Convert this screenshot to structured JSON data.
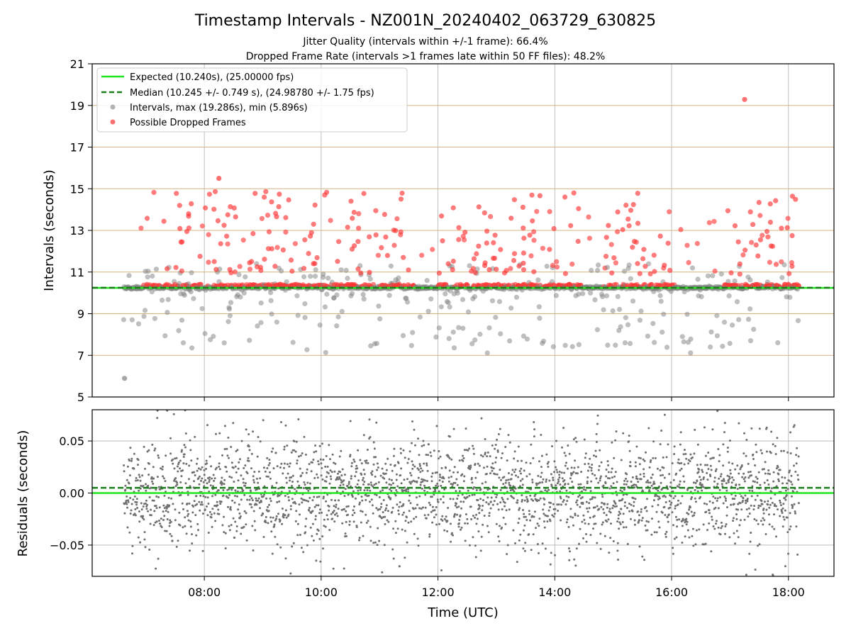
{
  "chart_data": [
    {
      "type": "scatter",
      "title": "Timestamp Intervals - NZ001N_20240402_063729_630825",
      "subtitle_lines": [
        "Jitter Quality (intervals within +/-1 frame): 66.4%",
        "Dropped Frame Rate (intervals >1 frames late within 50 FF files): 48.2%"
      ],
      "ylabel": "Intervals (seconds)",
      "ylim": [
        5,
        21
      ],
      "yticks": [
        "5",
        "7",
        "9",
        "11",
        "13",
        "15",
        "17",
        "19",
        "21"
      ],
      "xlim_hours": [
        6.08,
        18.78
      ],
      "grid": "vertical at x ticks; horizontal tan lines at odd y",
      "legend_position": "upper-left",
      "legend": [
        {
          "label": "Expected (10.240s), (25.00000 fps)",
          "style": "solid-line",
          "color": "#1ee61e"
        },
        {
          "label": "Median (10.245 +/- 0.749 s), (24.98780 +/- 1.75 fps)",
          "style": "dashed-line",
          "color": "#1a7f1a"
        },
        {
          "label": "Intervals, max (19.286s), min (5.896s)",
          "style": "marker",
          "color": "#808080"
        },
        {
          "label": "Possible Dropped Frames",
          "style": "marker",
          "color": "#ff3333"
        }
      ],
      "reference_lines": {
        "expected": 10.24,
        "median": 10.245
      },
      "time_span_hours": [
        6.62,
        18.18
      ],
      "notable_points": [
        {
          "time": "06:38",
          "interval": 5.896
        },
        {
          "time": "17:15",
          "interval": 19.286
        },
        {
          "time": "08:15",
          "interval": 15.5
        }
      ],
      "dropped_gaps_hours": [
        [
          11.6,
          12.0
        ],
        [
          14.45,
          14.8
        ],
        [
          16.1,
          16.9
        ]
      ]
    },
    {
      "type": "scatter",
      "ylabel": "Residuals (seconds)",
      "ylim": [
        -0.08,
        0.08
      ],
      "yticks": [
        "−0.05",
        "0.00",
        "0.05"
      ],
      "xlabel": "Time (UTC)",
      "xticks": [
        "08:00",
        "10:00",
        "12:00",
        "14:00",
        "16:00",
        "18:00"
      ],
      "xlim_hours": [
        6.08,
        18.78
      ],
      "reference_lines": {
        "expected": 0.0,
        "median": 0.005
      },
      "series_color": "#707070"
    }
  ]
}
